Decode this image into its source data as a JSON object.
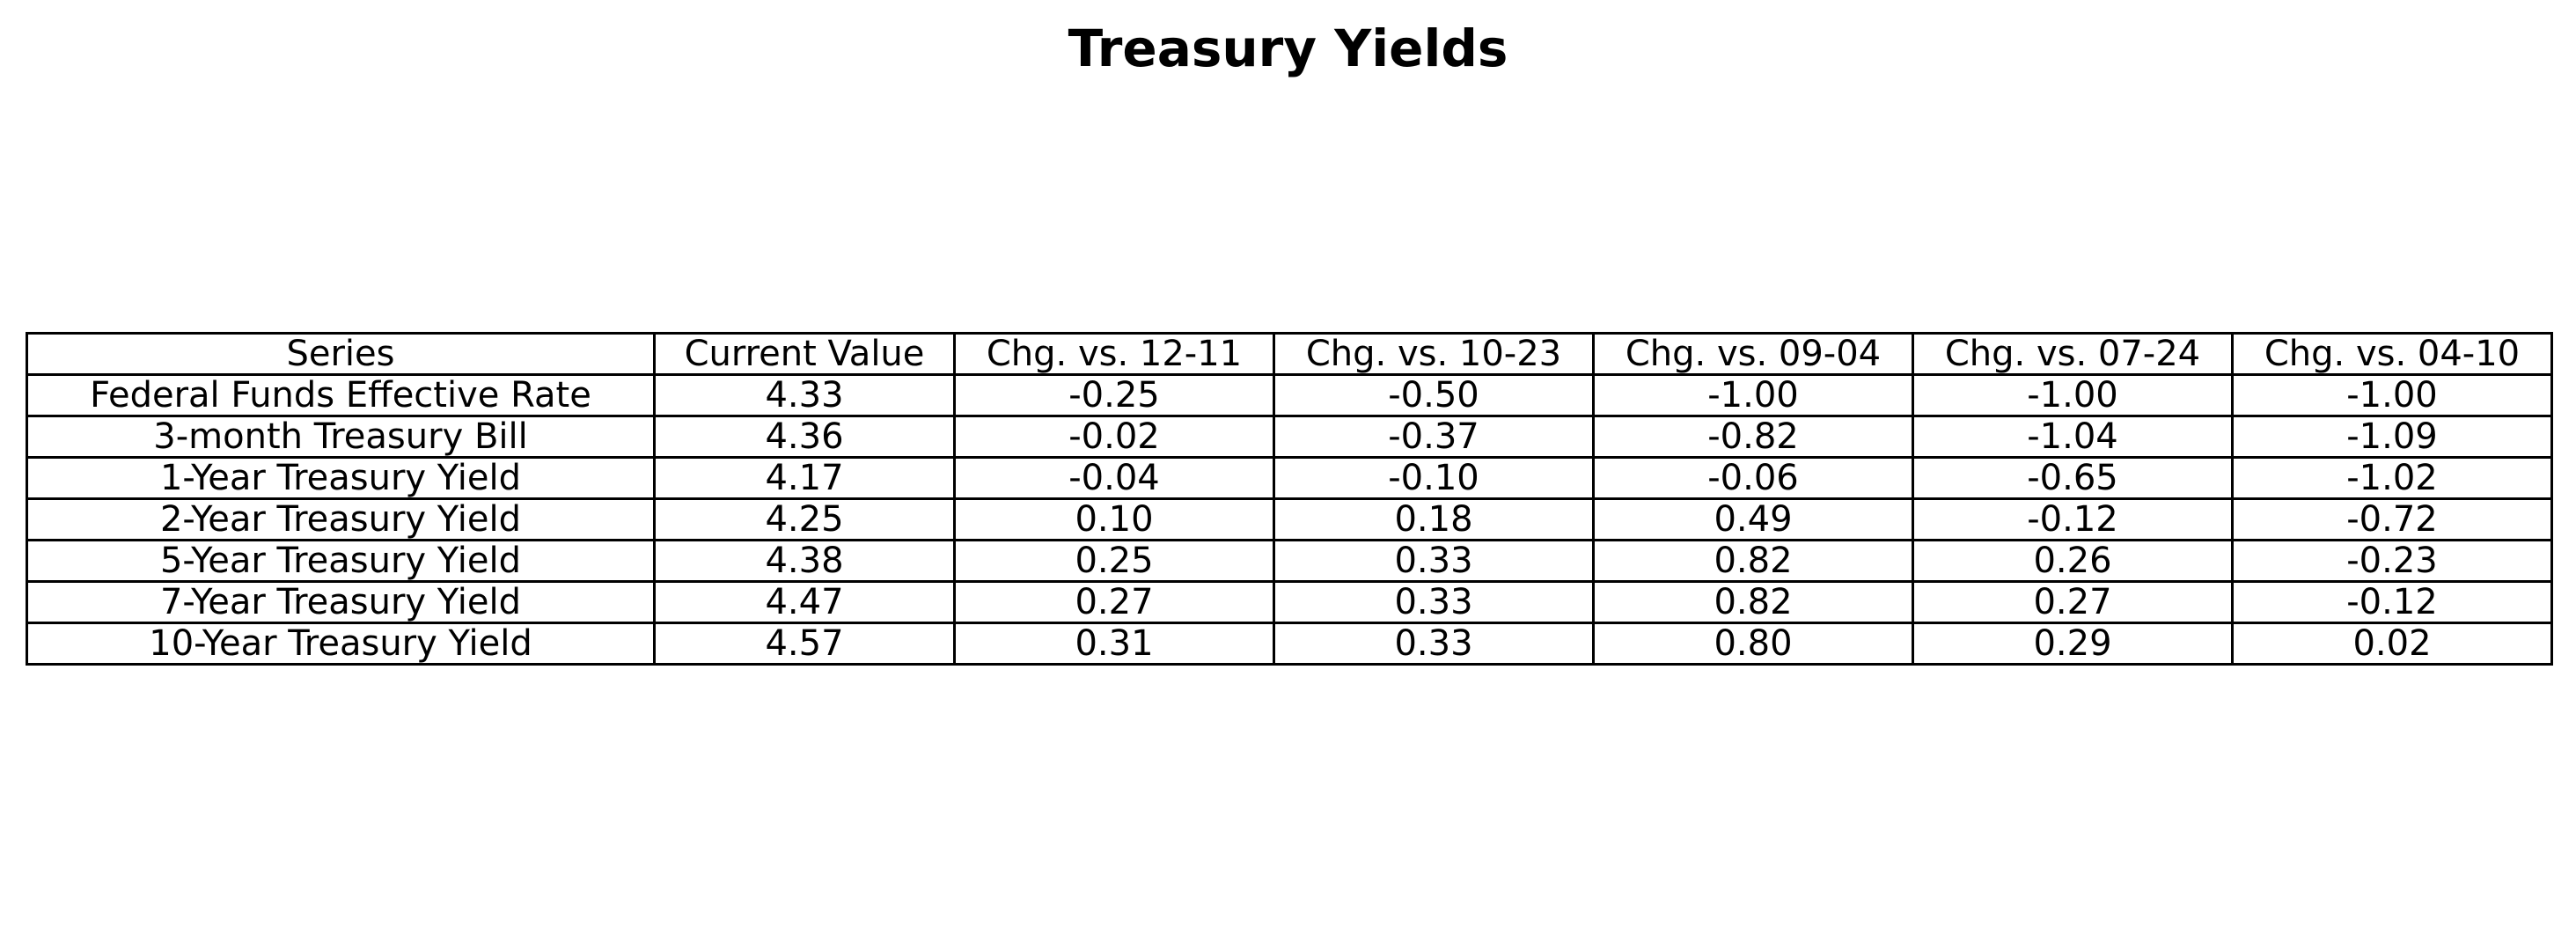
{
  "chart_data": {
    "type": "table",
    "title": "Treasury Yields",
    "columns": [
      "Series",
      "Current Value",
      "Chg. vs. 12-11",
      "Chg. vs. 10-23",
      "Chg. vs. 09-04",
      "Chg. vs. 07-24",
      "Chg. vs. 04-10"
    ],
    "rows": [
      [
        "Federal Funds Effective Rate",
        "4.33",
        "-0.25",
        "-0.50",
        "-1.00",
        "-1.00",
        "-1.00"
      ],
      [
        "3-month Treasury Bill",
        "4.36",
        "-0.02",
        "-0.37",
        "-0.82",
        "-1.04",
        "-1.09"
      ],
      [
        "1-Year Treasury Yield",
        "4.17",
        "-0.04",
        "-0.10",
        "-0.06",
        "-0.65",
        "-1.02"
      ],
      [
        "2-Year Treasury Yield",
        "4.25",
        "0.10",
        "0.18",
        "0.49",
        "-0.12",
        "-0.72"
      ],
      [
        "5-Year Treasury Yield",
        "4.38",
        "0.25",
        "0.33",
        "0.82",
        "0.26",
        "-0.23"
      ],
      [
        "7-Year Treasury Yield",
        "4.47",
        "0.27",
        "0.33",
        "0.82",
        "0.27",
        "-0.12"
      ],
      [
        "10-Year Treasury Yield",
        "4.57",
        "0.31",
        "0.33",
        "0.80",
        "0.29",
        "0.02"
      ]
    ],
    "grid": true
  }
}
